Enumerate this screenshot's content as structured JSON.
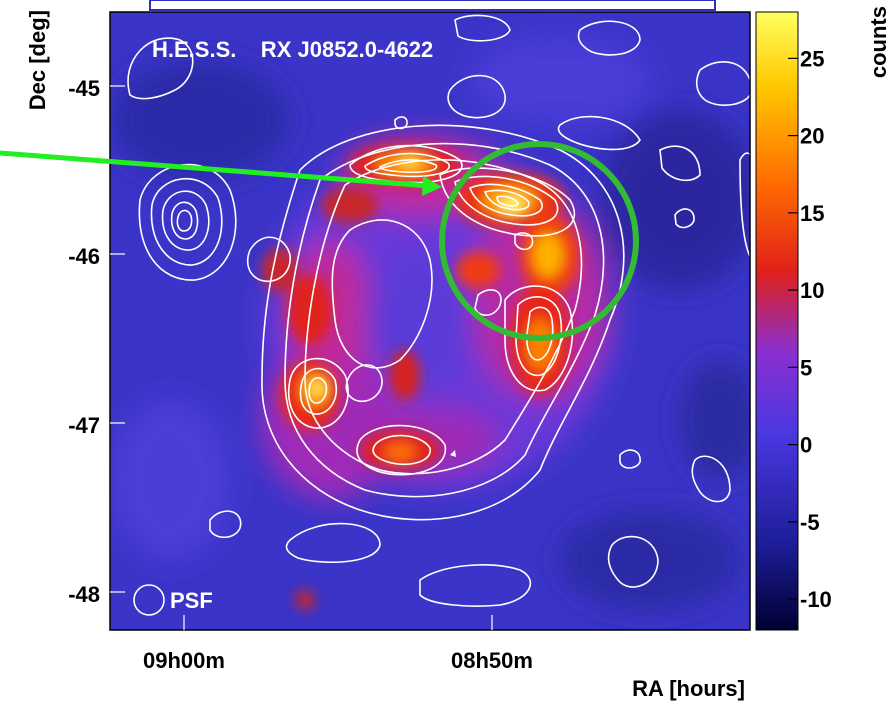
{
  "chart_data": {
    "type": "heatmap",
    "title": "H.E.S.S.    RX J0852.0-4622",
    "xlabel": "RA [hours]",
    "ylabel": "Dec [deg]",
    "x_ticks": [
      "09h00m",
      "08h50m"
    ],
    "y_ticks": [
      "-45",
      "-46",
      "-47",
      "-48"
    ],
    "colorbar": {
      "label": "counts",
      "ticks": [
        "25",
        "20",
        "15",
        "10",
        "5",
        "0",
        "-5",
        "-10"
      ],
      "range": [
        -12,
        28
      ],
      "colors": [
        "#000033",
        "#1d1d99",
        "#4a38e0",
        "#8a2fd0",
        "#e0201a",
        "#ff6a00",
        "#ffc800",
        "#ffff60"
      ]
    },
    "annotations": {
      "psf_label": "PSF",
      "highlight_circle_color": "#33bb33",
      "arrow_color": "#22ee22",
      "contour_color": "#ffffff"
    }
  }
}
